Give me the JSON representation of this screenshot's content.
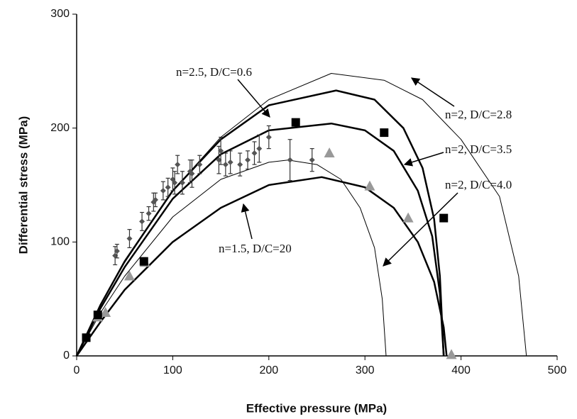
{
  "chart_data": {
    "type": "scatter",
    "x_label": "Effective pressure (MPa)",
    "y_label": "Differential stress (MPa)",
    "xlim": [
      0,
      500
    ],
    "ylim": [
      0,
      300
    ],
    "xticks": [
      0,
      100,
      200,
      300,
      400,
      500
    ],
    "yticks": [
      0,
      100,
      200,
      300
    ],
    "grid": false,
    "series": [
      {
        "kind": "line",
        "color": "#000000",
        "line_width": 1,
        "x": [
          0,
          25,
          50,
          100,
          150,
          200,
          265,
          320,
          360,
          400,
          440,
          460,
          468
        ],
        "values": [
          0,
          45,
          82,
          145,
          192,
          225,
          248,
          242,
          225,
          190,
          140,
          70,
          0
        ]
      },
      {
        "kind": "line",
        "color": "#000000",
        "line_width": 2.5,
        "x": [
          0,
          25,
          50,
          100,
          150,
          200,
          270,
          310,
          340,
          360,
          372,
          378,
          382
        ],
        "values": [
          0,
          45,
          83,
          145,
          190,
          220,
          233,
          225,
          200,
          165,
          120,
          70,
          0
        ]
      },
      {
        "kind": "line",
        "color": "#000000",
        "line_width": 2.5,
        "x": [
          0,
          25,
          50,
          100,
          150,
          200,
          265,
          300,
          330,
          355,
          370,
          378,
          382
        ],
        "values": [
          0,
          42,
          78,
          138,
          177,
          198,
          204,
          198,
          180,
          145,
          105,
          55,
          0
        ]
      },
      {
        "kind": "line",
        "color": "#000000",
        "line_width": 1,
        "x": [
          0,
          25,
          50,
          100,
          150,
          200,
          220,
          250,
          275,
          295,
          310,
          318,
          322
        ],
        "values": [
          0,
          38,
          70,
          122,
          155,
          170,
          172,
          168,
          155,
          130,
          95,
          50,
          0
        ]
      },
      {
        "kind": "line",
        "color": "#000000",
        "line_width": 2.5,
        "x": [
          0,
          25,
          50,
          100,
          150,
          200,
          255,
          300,
          330,
          355,
          372,
          382,
          385
        ],
        "values": [
          0,
          30,
          58,
          100,
          130,
          150,
          157,
          148,
          130,
          100,
          65,
          25,
          0
        ]
      },
      {
        "kind": "points",
        "marker": "diamond",
        "color": "#555555",
        "x": [
          40,
          42,
          55,
          68,
          75,
          80,
          82,
          90,
          95,
          100,
          102,
          105,
          110,
          118,
          120,
          128,
          148,
          150,
          155,
          160,
          170,
          178,
          185,
          190,
          200,
          222,
          245
        ],
        "values": [
          88,
          92,
          103,
          118,
          125,
          135,
          137,
          145,
          148,
          155,
          152,
          168,
          152,
          162,
          160,
          168,
          172,
          180,
          168,
          170,
          168,
          172,
          178,
          182,
          192,
          172,
          172
        ],
        "errors": [
          8,
          6,
          8,
          8,
          6,
          8,
          6,
          8,
          8,
          10,
          10,
          8,
          10,
          10,
          12,
          8,
          12,
          12,
          10,
          10,
          10,
          8,
          10,
          12,
          10,
          18,
          10
        ]
      },
      {
        "kind": "points",
        "marker": "triangle",
        "color": "#999999",
        "x": [
          22,
          30,
          55,
          71,
          263,
          305,
          345,
          390
        ],
        "values": [
          34,
          38,
          70,
          82,
          178,
          149,
          121,
          1
        ]
      },
      {
        "kind": "points",
        "marker": "square",
        "color": "#000000",
        "x": [
          10,
          22,
          70,
          228,
          320,
          382
        ],
        "values": [
          16,
          36,
          83,
          205,
          196,
          121
        ]
      }
    ],
    "annotations": [
      "n=2.5, D/C=0.6",
      "n=2, D/C=2.8",
      "n=2, D/C=3.5",
      "n=2, D/C=4.0",
      "n=1.5, D/C=20"
    ]
  }
}
